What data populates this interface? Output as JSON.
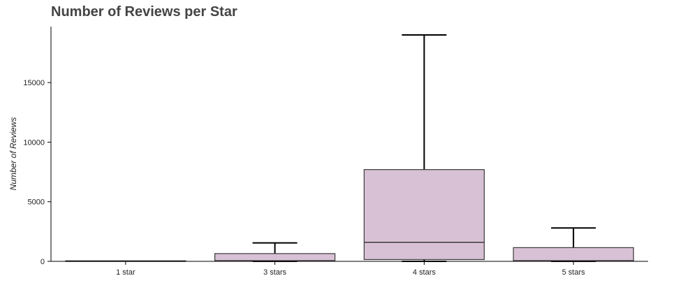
{
  "chart_data": {
    "type": "box",
    "title": "Number of Reviews per Star",
    "xlabel": "",
    "ylabel": "Number of Reviews",
    "ylim": [
      0,
      19700
    ],
    "yticks": [
      0,
      5000,
      10000,
      15000
    ],
    "grid": false,
    "legend": "none",
    "box_color": "#d8c1d5",
    "edge_color": "#3a3a3a",
    "categories": [
      "1 star",
      "3 stars",
      "4 stars",
      "5 stars"
    ],
    "boxes": [
      {
        "category": "1 star",
        "whisker_low": 0,
        "q1": 0,
        "median": 0,
        "q3": 0,
        "whisker_high": 0
      },
      {
        "category": "3 stars",
        "whisker_low": 0,
        "q1": 20,
        "median": 50,
        "q3": 650,
        "whisker_high": 1550
      },
      {
        "category": "4 stars",
        "whisker_low": 0,
        "q1": 150,
        "median": 1600,
        "q3": 7700,
        "whisker_high": 19000
      },
      {
        "category": "5 stars",
        "whisker_low": 0,
        "q1": 20,
        "median": 50,
        "q3": 1150,
        "whisker_high": 2800
      }
    ]
  }
}
